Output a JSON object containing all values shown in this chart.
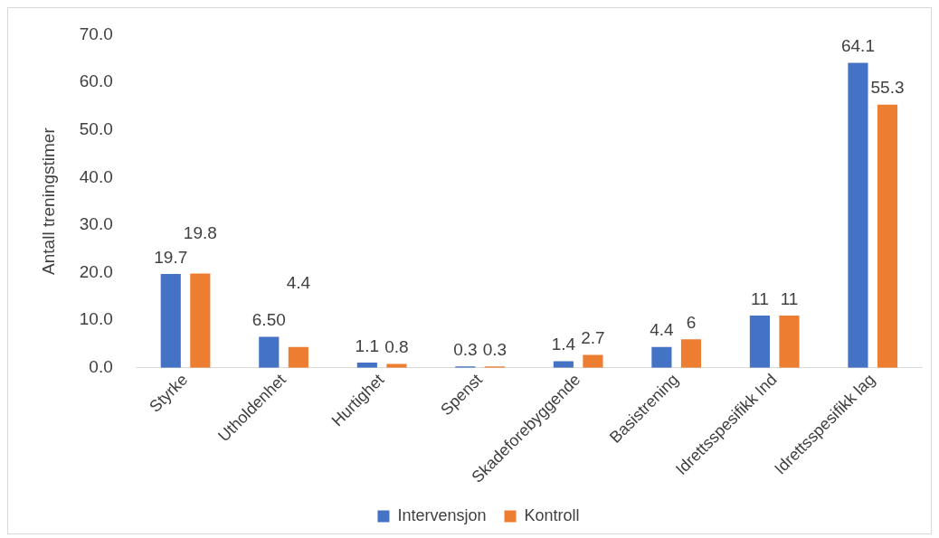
{
  "chart_data": {
    "type": "bar",
    "ylabel": "Antall treningstimer",
    "categories": [
      "Styrke",
      "Utholdenhet",
      "Hurtighet",
      "Spenst",
      "Skadeforebyggende",
      "Basistrening",
      "Idrettsspesifikk Ind",
      "Idrettsspesifikk lag"
    ],
    "series": [
      {
        "name": "Intervensjon",
        "color": "#4472c4",
        "values": [
          19.7,
          6.5,
          1.1,
          0.3,
          1.4,
          4.4,
          11,
          64.1
        ],
        "value_labels": [
          "19.7",
          "6.50",
          "1.1",
          "0.3",
          "1.4",
          "4.4",
          "11",
          "64.1"
        ]
      },
      {
        "name": "Kontroll",
        "color": "#ed7d31",
        "values": [
          19.8,
          4.4,
          0.8,
          0.3,
          2.7,
          6,
          11,
          55.3
        ],
        "value_labels": [
          "19.8",
          "4.4",
          "0.8",
          "0.3",
          "2.7",
          "6",
          "11",
          "55.3"
        ]
      }
    ],
    "ylim": [
      0,
      70
    ],
    "yticks": [
      {
        "value": 0,
        "label": "0.0"
      },
      {
        "value": 10,
        "label": "10.0"
      },
      {
        "value": 20,
        "label": "20.0"
      },
      {
        "value": 30,
        "label": "30.0"
      },
      {
        "value": 40,
        "label": "40.0"
      },
      {
        "value": 50,
        "label": "50.0"
      },
      {
        "value": 60,
        "label": "60.0"
      },
      {
        "value": 70,
        "label": "70.0"
      }
    ],
    "grid": false,
    "legend": "bottom"
  }
}
